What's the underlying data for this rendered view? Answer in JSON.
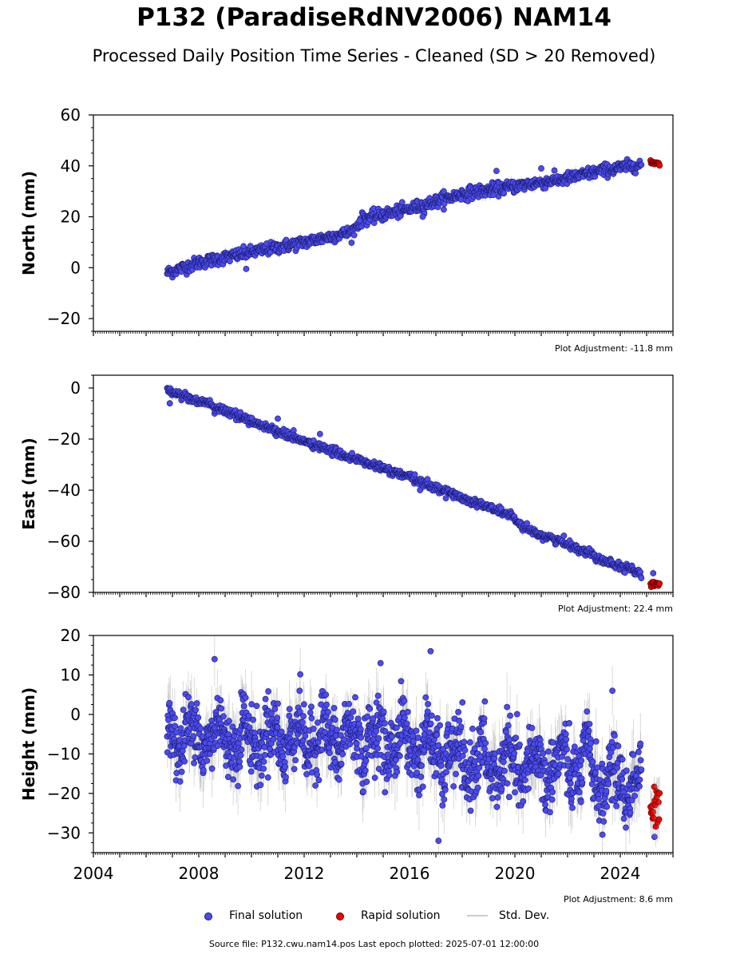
{
  "title": "P132 (ParadiseRdNV2006) NAM14",
  "subtitle": "Processed Daily Position Time Series - Cleaned (SD > 20 Removed)",
  "legend": {
    "final": "Final solution",
    "rapid": "Rapid solution",
    "std": "Std. Dev."
  },
  "footer": "Source file: P132.cwu.nam14.pos  Last epoch plotted: 2025-07-01 12:00:00",
  "colors": {
    "final_fill": "#4b4bf0",
    "final_edge": "#1a1a66",
    "rapid_fill": "#ee0000",
    "std_dev": "#999999"
  },
  "chart_data": [
    {
      "type": "scatter",
      "name": "north",
      "ylabel": "North (mm)",
      "xlim": [
        2004,
        2026
      ],
      "ylim": [
        -25,
        60
      ],
      "yticks": [
        -20,
        0,
        20,
        40,
        60
      ],
      "yticklabels": [
        "−20",
        "0",
        "20",
        "40",
        "60"
      ],
      "adjustment": "Plot Adjustment: -11.8 mm",
      "final": {
        "x": [
          2006.8,
          2008,
          2010,
          2012,
          2013.8,
          2014.2,
          2016,
          2018,
          2020,
          2022,
          2023.2,
          2024.8
        ],
        "y": [
          -2,
          2,
          6,
          10,
          14,
          19,
          23,
          29,
          32,
          35,
          38,
          40.5
        ],
        "noise": 1.2
      },
      "rapid": {
        "x": [
          2025.15,
          2025.5
        ],
        "y": [
          41.5,
          41
        ]
      },
      "outliers": [
        [
          2017.3,
          30
        ],
        [
          2019.3,
          38
        ],
        [
          2021,
          39
        ],
        [
          2009.8,
          -0.5
        ],
        [
          2014.1,
          18.5
        ],
        [
          2016.5,
          20
        ]
      ]
    },
    {
      "type": "scatter",
      "name": "east",
      "ylabel": "East (mm)",
      "xlim": [
        2004,
        2026
      ],
      "ylim": [
        -80,
        5
      ],
      "yticks": [
        -80,
        -60,
        -40,
        -20,
        0
      ],
      "yticklabels": [
        "−80",
        "−60",
        "−40",
        "−20",
        "0"
      ],
      "adjustment": "Plot Adjustment: 22.4 mm",
      "final": {
        "x": [
          2006.8,
          2008,
          2010,
          2012,
          2014,
          2016,
          2018,
          2019.9,
          2020.3,
          2022,
          2023.3,
          2024.8
        ],
        "y": [
          -1,
          -5,
          -13,
          -21,
          -28,
          -35,
          -43,
          -50,
          -55,
          -61,
          -67,
          -72.5
        ],
        "noise": 0.8
      },
      "rapid": {
        "x": [
          2025.15,
          2025.5
        ],
        "y": [
          -76.5,
          -77
        ]
      },
      "outliers": [
        [
          2011,
          -12
        ],
        [
          2012.6,
          -18
        ],
        [
          2016.4,
          -40
        ],
        [
          2006.9,
          -6
        ],
        [
          2025.25,
          -72.5
        ]
      ]
    },
    {
      "type": "scatter",
      "name": "height",
      "ylabel": "Height (mm)",
      "xlim": [
        2004,
        2026
      ],
      "ylim": [
        -35,
        20
      ],
      "yticks": [
        -30,
        -20,
        -10,
        0,
        10,
        20
      ],
      "yticklabels": [
        "−30",
        "−20",
        "−10",
        "0",
        "10",
        "20"
      ],
      "xticks": [
        2004,
        2008,
        2012,
        2016,
        2020,
        2024
      ],
      "xticklabels": [
        "2004",
        "2008",
        "2012",
        "2016",
        "2020",
        "2024"
      ],
      "adjustment": "Plot Adjustment: 8.6 mm",
      "final": {
        "x": [
          2006.8,
          2010,
          2013,
          2016,
          2018,
          2020,
          2022.9,
          2023.2,
          2024.8
        ],
        "y": [
          -5,
          -6,
          -6,
          -7,
          -12,
          -13,
          -13,
          -17,
          -17
        ],
        "noise": 5
      },
      "rapid": {
        "x": [
          2025.15,
          2025.5
        ],
        "y": [
          -22,
          -22
        ]
      },
      "outliers": [
        [
          2008.6,
          14
        ],
        [
          2014.9,
          13
        ],
        [
          2016.8,
          16
        ],
        [
          2023.7,
          6
        ],
        [
          2017.1,
          -32
        ],
        [
          2025.3,
          -31
        ]
      ]
    }
  ]
}
